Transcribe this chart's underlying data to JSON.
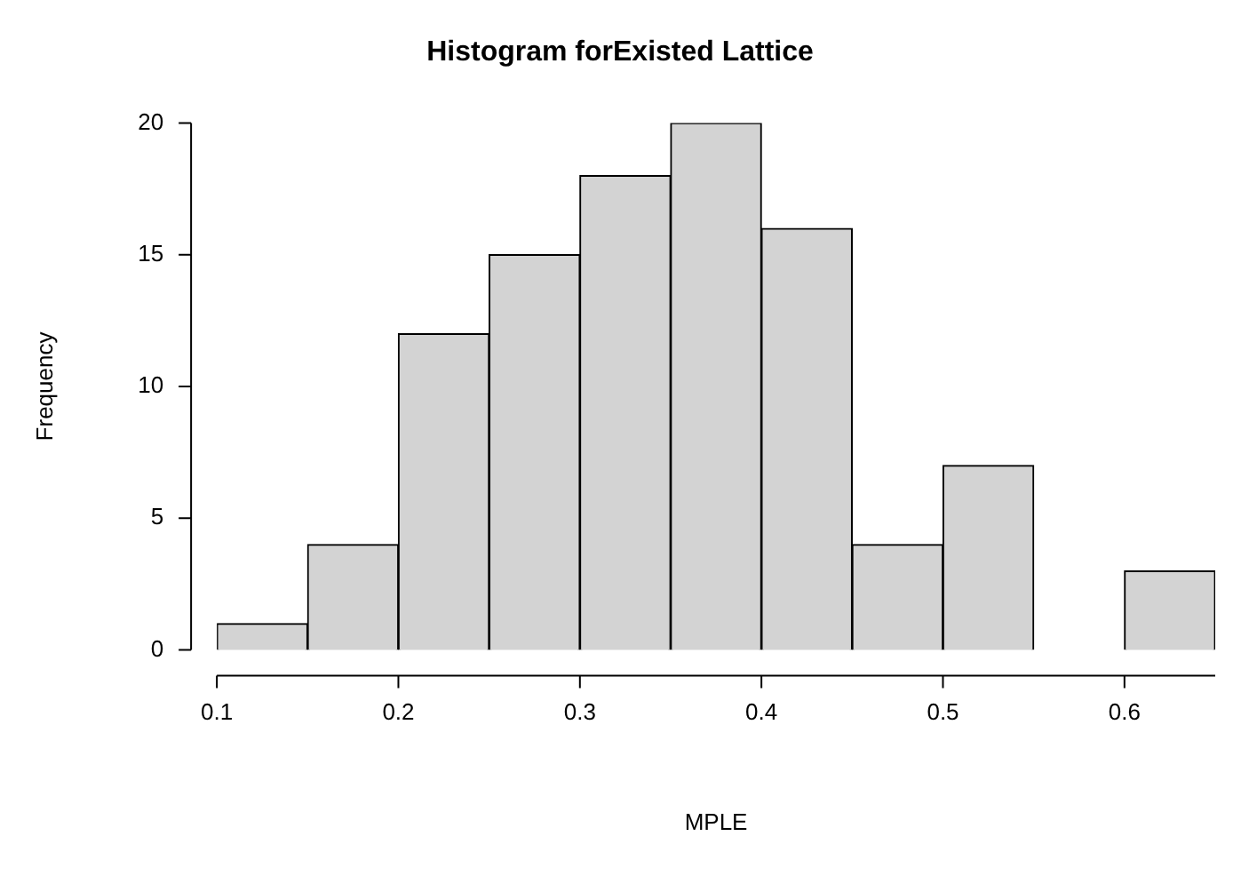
{
  "chart_data": {
    "type": "histogram",
    "title": "Histogram forExisted Lattice",
    "xlabel": "MPLE",
    "ylabel": "Frequency",
    "bins": [
      0.1,
      0.15,
      0.2,
      0.25,
      0.3,
      0.35,
      0.4,
      0.45,
      0.5,
      0.55,
      0.6,
      0.65
    ],
    "values": [
      1,
      4,
      12,
      15,
      18,
      20,
      16,
      4,
      7,
      0,
      3
    ],
    "color": "#d3d3d3",
    "xlim": [
      0.1,
      0.65
    ],
    "xticks": [
      0.1,
      0.2,
      0.3,
      0.4,
      0.5,
      0.6
    ],
    "ylim": [
      0,
      20
    ],
    "yticks": [
      0,
      5,
      10,
      15,
      20
    ],
    "grid": false,
    "legend": false
  }
}
